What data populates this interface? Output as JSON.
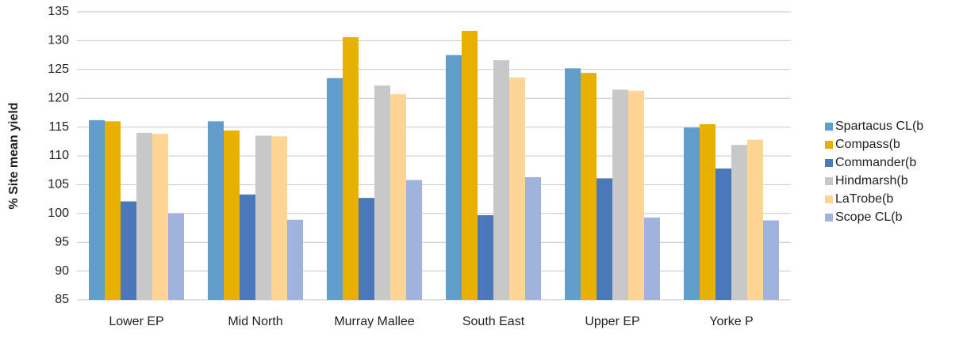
{
  "chart_data": {
    "type": "bar",
    "y_label": "% Site mean yield",
    "categories": [
      "Lower EP",
      "Mid North",
      "Murray Mallee",
      "South East",
      "Upper EP",
      "Yorke P"
    ],
    "series": [
      {
        "name": "Spartacus CL(b",
        "color": "#5f9ecb",
        "values": [
          116.2,
          116.0,
          123.5,
          127.5,
          125.2,
          114.9
        ]
      },
      {
        "name": "Compass(b",
        "color": "#e8b100",
        "values": [
          116.0,
          114.4,
          130.6,
          131.7,
          124.4,
          115.5
        ]
      },
      {
        "name": "Commander(b",
        "color": "#4a78bb",
        "values": [
          102.1,
          103.3,
          102.7,
          99.7,
          106.1,
          107.8
        ]
      },
      {
        "name": "Hindmarsh(b",
        "color": "#c8c8c8",
        "values": [
          114.0,
          113.5,
          122.2,
          126.6,
          121.5,
          111.9
        ]
      },
      {
        "name": "LaTrobe(b",
        "color": "#fdd696",
        "values": [
          113.8,
          113.4,
          120.7,
          123.6,
          121.3,
          112.8
        ]
      },
      {
        "name": "Scope CL(b",
        "color": "#9fb3dc",
        "values": [
          100.0,
          98.9,
          105.8,
          106.3,
          99.3,
          98.8
        ]
      }
    ],
    "ylim": [
      85,
      135
    ],
    "yticks": [
      85,
      90,
      95,
      100,
      105,
      110,
      115,
      120,
      125,
      130,
      135
    ],
    "grid": true,
    "legend": "right"
  }
}
